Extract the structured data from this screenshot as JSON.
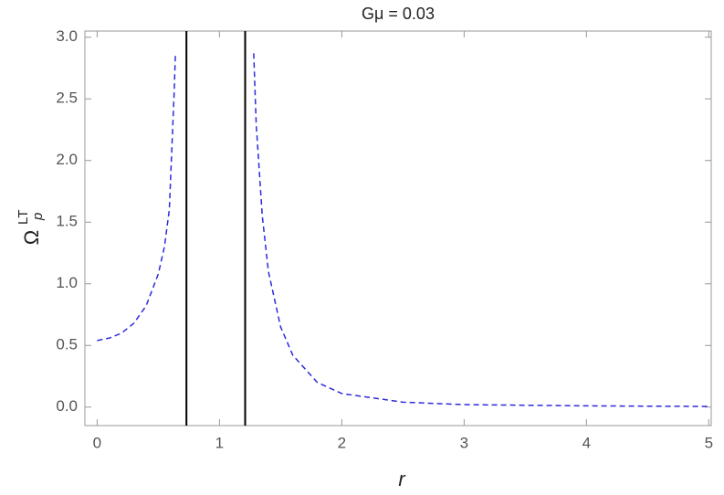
{
  "chart_data": {
    "type": "line",
    "title": "Gμ = 0.03",
    "xlabel": "r",
    "ylabel": "Ω",
    "ylabel_sub": "p",
    "ylabel_sup": "LT",
    "x": [
      0,
      0.1,
      0.2,
      0.3,
      0.4,
      0.5,
      0.55,
      0.59,
      0.63,
      0.64,
      0.96,
      1.28,
      1.3,
      1.35,
      1.4,
      1.5,
      1.6,
      1.8,
      2.0,
      2.5,
      3,
      4,
      5
    ],
    "values": [
      0.54,
      0.56,
      0.6,
      0.68,
      0.82,
      1.08,
      1.3,
      1.6,
      2.56,
      2.87,
      null,
      2.87,
      2.3,
      1.55,
      1.1,
      0.65,
      0.42,
      0.2,
      0.11,
      0.04,
      0.02,
      0.01,
      0.005
    ],
    "color": "#2b2bd9",
    "dashed": true,
    "vertical_lines": [
      0.73,
      1.21
    ],
    "vertical_line_color": "#000000",
    "xlim": [
      -0.1,
      5.02
    ],
    "ylim": [
      -0.15,
      3.05
    ],
    "xticks": [
      0,
      1,
      2,
      3,
      4,
      5
    ],
    "yticks": [
      {
        "value": 0,
        "label": "0.0"
      },
      0.5,
      {
        "value": 1,
        "label": "1.0"
      },
      1.5,
      {
        "value": 2,
        "label": "2.0"
      },
      2.5,
      {
        "value": 3,
        "label": "3.0"
      }
    ]
  }
}
